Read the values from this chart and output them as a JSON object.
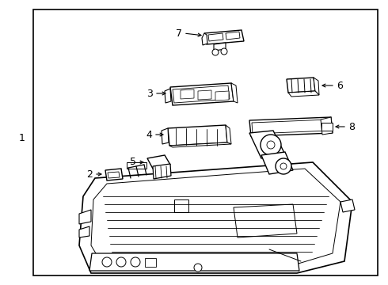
{
  "bg_color": "#ffffff",
  "border_color": "#000000",
  "line_color": "#000000",
  "text_color": "#000000",
  "lw_main": 1.0,
  "lw_thin": 0.6,
  "lw_thick": 1.3,
  "figsize": [
    4.9,
    3.6
  ],
  "dpi": 100
}
